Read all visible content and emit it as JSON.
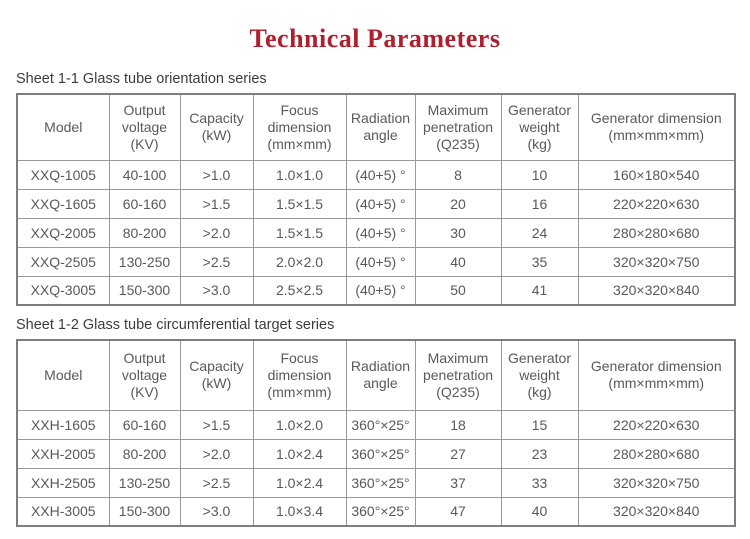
{
  "page": {
    "title": "Technical Parameters"
  },
  "colors": {
    "title": "#b01f2e",
    "text": "#595959",
    "border": "#9a9a9a"
  },
  "tables": [
    {
      "sheet_label": "Sheet 1-1 Glass tube orientation series",
      "columns": [
        {
          "lines": [
            "Model"
          ]
        },
        {
          "lines": [
            "Output",
            "voltage",
            "(KV)"
          ]
        },
        {
          "lines": [
            "Capacity",
            "(kW)"
          ]
        },
        {
          "lines": [
            "Focus",
            "dimension",
            "(mm×mm)"
          ]
        },
        {
          "lines": [
            "Radiation",
            "angle"
          ]
        },
        {
          "lines": [
            "Maximum",
            "penetration",
            "(Q235)"
          ]
        },
        {
          "lines": [
            "Generator",
            "weight",
            "(kg)"
          ]
        },
        {
          "lines": [
            "Generator dimension",
            "(mm×mm×mm)"
          ]
        }
      ],
      "rows": [
        [
          "XXQ-1005",
          "40-100",
          ">1.0",
          "1.0×1.0",
          "(40+5) °",
          "8",
          "10",
          "160×180×540"
        ],
        [
          "XXQ-1605",
          "60-160",
          ">1.5",
          "1.5×1.5",
          "(40+5) °",
          "20",
          "16",
          "220×220×630"
        ],
        [
          "XXQ-2005",
          "80-200",
          ">2.0",
          "1.5×1.5",
          "(40+5) °",
          "30",
          "24",
          "280×280×680"
        ],
        [
          "XXQ-2505",
          "130-250",
          ">2.5",
          "2.0×2.0",
          "(40+5) °",
          "40",
          "35",
          "320×320×750"
        ],
        [
          "XXQ-3005",
          "150-300",
          ">3.0",
          "2.5×2.5",
          "(40+5) °",
          "50",
          "41",
          "320×320×840"
        ]
      ]
    },
    {
      "sheet_label": "Sheet 1-2 Glass tube circumferential target series",
      "columns": [
        {
          "lines": [
            "Model"
          ]
        },
        {
          "lines": [
            "Output",
            "voltage",
            "(KV)"
          ]
        },
        {
          "lines": [
            "Capacity",
            "(kW)"
          ]
        },
        {
          "lines": [
            "Focus",
            "dimension",
            "(mm×mm)"
          ]
        },
        {
          "lines": [
            "Radiation",
            "angle"
          ]
        },
        {
          "lines": [
            "Maximum",
            "penetration",
            "(Q235)"
          ]
        },
        {
          "lines": [
            "Generator",
            "weight",
            "(kg)"
          ]
        },
        {
          "lines": [
            "Generator dimension",
            "(mm×mm×mm)"
          ]
        }
      ],
      "rows": [
        [
          "XXH-1605",
          "60-160",
          ">1.5",
          "1.0×2.0",
          "360°×25°",
          "18",
          "15",
          "220×220×630"
        ],
        [
          "XXH-2005",
          "80-200",
          ">2.0",
          "1.0×2.4",
          "360°×25°",
          "27",
          "23",
          "280×280×680"
        ],
        [
          "XXH-2505",
          "130-250",
          ">2.5",
          "1.0×2.4",
          "360°×25°",
          "37",
          "33",
          "320×320×750"
        ],
        [
          "XXH-3005",
          "150-300",
          ">3.0",
          "1.0×3.4",
          "360°×25°",
          "47",
          "40",
          "320×320×840"
        ]
      ]
    }
  ]
}
